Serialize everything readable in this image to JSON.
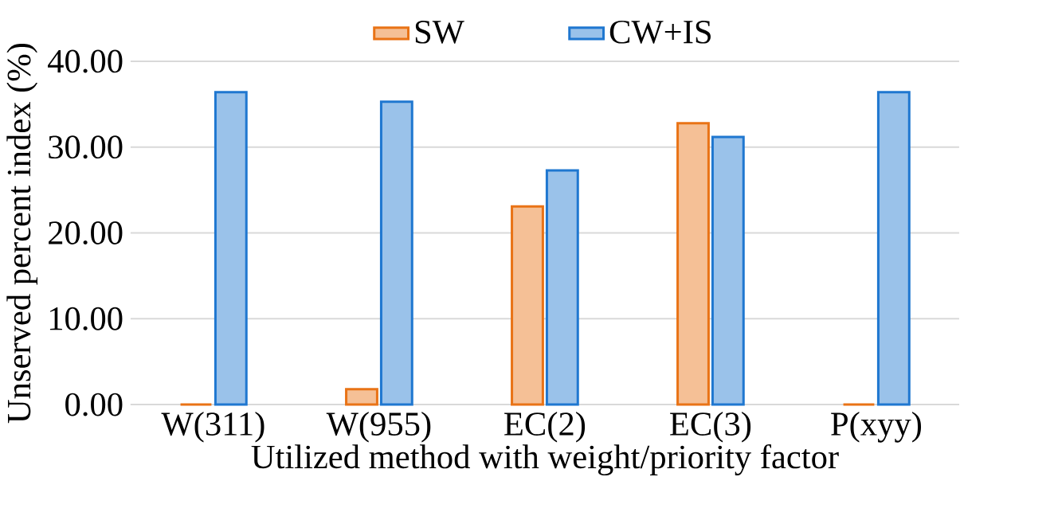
{
  "chart_data": {
    "type": "bar",
    "xlabel": "Utilized method with weight/priority factor",
    "ylabel": "Unserved percent index (%)",
    "categories": [
      "W(311)",
      "W(955)",
      "EC(2)",
      "EC(3)",
      "P(xyy)"
    ],
    "series": [
      {
        "name": "SW",
        "color": "#e97316",
        "values": [
          0,
          1.8,
          23.1,
          32.8,
          0
        ]
      },
      {
        "name": "CW+IS",
        "color": "#1f77d0",
        "values": [
          36.4,
          35.3,
          27.3,
          31.2,
          36.4
        ]
      }
    ],
    "ylim": [
      0,
      40
    ],
    "yticks": [
      {
        "value": 0,
        "label": "0.00"
      },
      {
        "value": 10,
        "label": "10.00"
      },
      {
        "value": 20,
        "label": "20.00"
      },
      {
        "value": 30,
        "label": "30.00"
      },
      {
        "value": 40,
        "label": "40.00"
      }
    ],
    "grid": "y",
    "legend": "top"
  }
}
